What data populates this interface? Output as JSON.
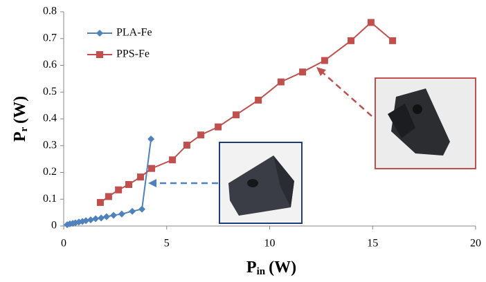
{
  "chart_data": {
    "type": "line",
    "x_label": {
      "main": "P",
      "sub": "in",
      "unit": "(W)"
    },
    "y_label": {
      "main": "P",
      "sub": "r",
      "unit": "(W)"
    },
    "xlim": [
      0,
      20
    ],
    "xticks": [
      0,
      5,
      10,
      15,
      20
    ],
    "ylim": [
      0,
      0.8
    ],
    "yticks": [
      0,
      0.1,
      0.2,
      0.3,
      0.4,
      0.5,
      0.6,
      0.7,
      0.8
    ],
    "grid": false,
    "legend": "upper left",
    "series": [
      {
        "name": "PLA-Fe",
        "color": "#4f81bd",
        "marker": "diamond",
        "x": [
          0.17,
          0.3,
          0.44,
          0.57,
          0.74,
          0.91,
          1.08,
          1.31,
          1.55,
          1.82,
          2.08,
          2.42,
          2.82,
          3.33,
          3.8,
          4.24
        ],
        "values": [
          0.005,
          0.008,
          0.01,
          0.012,
          0.015,
          0.017,
          0.02,
          0.023,
          0.027,
          0.03,
          0.035,
          0.04,
          0.045,
          0.055,
          0.063,
          0.325
        ]
      },
      {
        "name": "PPS-Fe",
        "color": "#c0504d",
        "marker": "square",
        "x": [
          1.78,
          2.18,
          2.66,
          3.16,
          3.73,
          4.27,
          5.28,
          5.98,
          6.66,
          7.5,
          8.37,
          9.45,
          10.55,
          11.6,
          12.67,
          13.95,
          14.92,
          15.97
        ],
        "values": [
          0.088,
          0.11,
          0.135,
          0.155,
          0.183,
          0.215,
          0.247,
          0.302,
          0.34,
          0.37,
          0.415,
          0.47,
          0.538,
          0.575,
          0.618,
          0.692,
          0.76,
          0.692
        ]
      }
    ]
  }
}
